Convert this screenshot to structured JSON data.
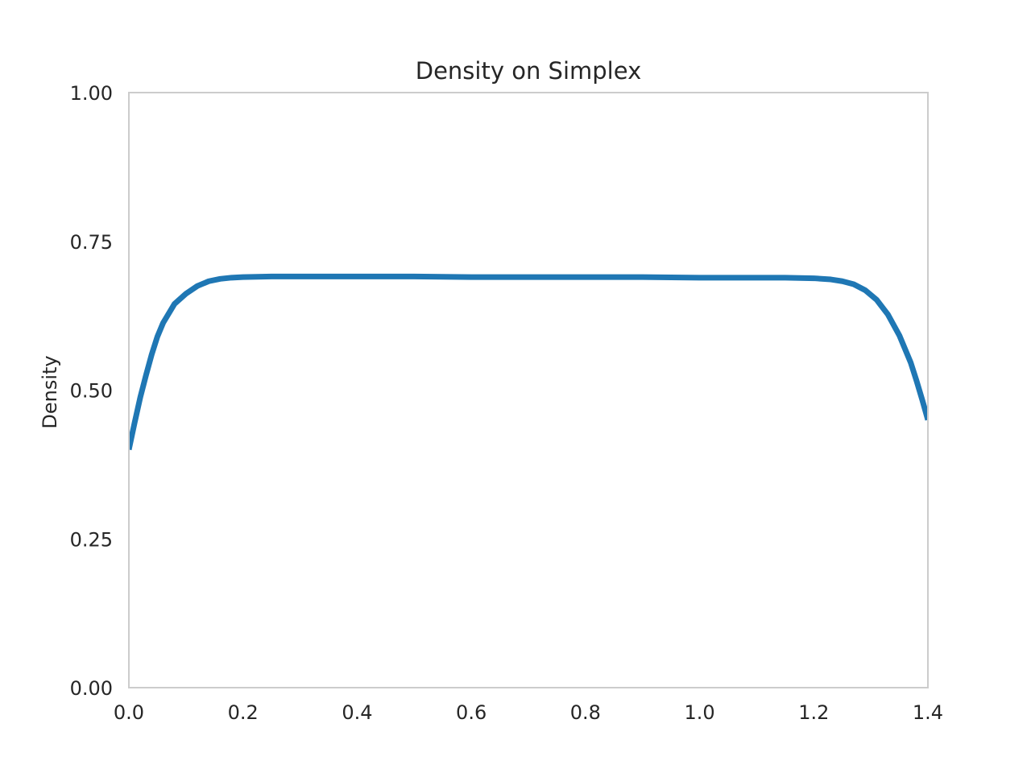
{
  "chart_data": {
    "type": "line",
    "title": "Density on Simplex",
    "xlabel": "",
    "ylabel": "Density",
    "xlim": [
      0.0,
      1.4
    ],
    "ylim": [
      0.0,
      1.0
    ],
    "x_ticks": [
      "0.0",
      "0.2",
      "0.4",
      "0.6",
      "0.8",
      "1.0",
      "1.2",
      "1.4"
    ],
    "y_ticks": [
      "0.00",
      "0.25",
      "0.50",
      "0.75",
      "1.00"
    ],
    "grid": false,
    "legend": "none",
    "colors": {
      "line": "#1f77b4",
      "frame": "#cccccc"
    },
    "series": [
      {
        "x": [
          0.0,
          0.01,
          0.02,
          0.03,
          0.04,
          0.05,
          0.06,
          0.08,
          0.1,
          0.12,
          0.14,
          0.16,
          0.18,
          0.2,
          0.25,
          0.3,
          0.4,
          0.5,
          0.6,
          0.7,
          0.8,
          0.9,
          1.0,
          1.1,
          1.15,
          1.2,
          1.23,
          1.25,
          1.27,
          1.29,
          1.31,
          1.33,
          1.35,
          1.37,
          1.38,
          1.39,
          1.4
        ],
        "values": [
          0.4,
          0.445,
          0.488,
          0.525,
          0.56,
          0.59,
          0.613,
          0.645,
          0.662,
          0.675,
          0.683,
          0.687,
          0.689,
          0.69,
          0.691,
          0.691,
          0.691,
          0.691,
          0.69,
          0.69,
          0.69,
          0.69,
          0.689,
          0.689,
          0.689,
          0.688,
          0.686,
          0.683,
          0.678,
          0.668,
          0.652,
          0.627,
          0.592,
          0.546,
          0.516,
          0.484,
          0.45
        ]
      }
    ]
  }
}
